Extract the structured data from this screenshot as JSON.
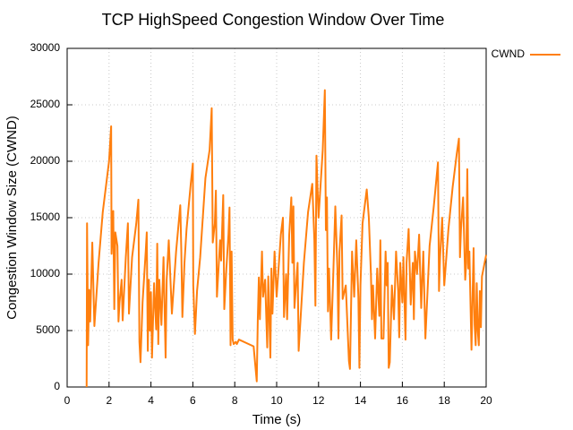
{
  "chart_data": {
    "type": "line",
    "title": "TCP HighSpeed Congestion Window Over Time",
    "x_label": "Time (s)",
    "y_label": "Congestion Window Size (CWND)",
    "xlim": [
      0,
      20
    ],
    "xticks": [
      0,
      2,
      4,
      6,
      8,
      10,
      12,
      14,
      16,
      18,
      20
    ],
    "ylim": [
      0,
      30000
    ],
    "yticks": [
      0,
      5000,
      10000,
      15000,
      20000,
      25000,
      30000
    ],
    "grid": true,
    "legend": "outside-top-right",
    "x": [
      0.93,
      0.95,
      1.0,
      1.05,
      1.1,
      1.2,
      1.3,
      1.5,
      1.7,
      2.0,
      2.1,
      2.12,
      2.2,
      2.25,
      2.3,
      2.4,
      2.45,
      2.5,
      2.6,
      2.65,
      2.8,
      2.9,
      2.95,
      3.1,
      3.3,
      3.4,
      3.45,
      3.5,
      3.6,
      3.75,
      3.8,
      3.85,
      3.9,
      3.95,
      4.0,
      4.05,
      4.15,
      4.25,
      4.3,
      4.35,
      4.4,
      4.5,
      4.6,
      4.7,
      4.75,
      4.85,
      5.0,
      5.2,
      5.4,
      5.45,
      5.5,
      5.6,
      5.7,
      5.9,
      6.0,
      6.02,
      6.1,
      6.2,
      6.35,
      6.6,
      6.8,
      6.9,
      6.95,
      7.05,
      7.1,
      7.15,
      7.3,
      7.35,
      7.45,
      7.5,
      7.6,
      7.7,
      7.75,
      7.8,
      7.85,
      7.9,
      7.95,
      8.05,
      8.1,
      8.2,
      8.9,
      9.05,
      9.1,
      9.15,
      9.2,
      9.3,
      9.35,
      9.45,
      9.55,
      9.6,
      9.7,
      9.75,
      9.8,
      9.9,
      10.0,
      10.2,
      10.3,
      10.35,
      10.45,
      10.5,
      10.6,
      10.7,
      10.75,
      10.8,
      10.85,
      11.0,
      11.05,
      11.3,
      11.5,
      11.7,
      11.8,
      11.85,
      11.9,
      12.0,
      12.2,
      12.3,
      12.35,
      12.4,
      12.45,
      12.5,
      12.6,
      12.7,
      12.8,
      12.9,
      12.95,
      13.0,
      13.1,
      13.15,
      13.3,
      13.45,
      13.5,
      13.6,
      13.7,
      13.8,
      13.9,
      13.95,
      14.0,
      14.1,
      14.3,
      14.4,
      14.5,
      14.55,
      14.6,
      14.7,
      14.8,
      14.9,
      14.95,
      15.0,
      15.1,
      15.2,
      15.25,
      15.3,
      15.35,
      15.4,
      15.5,
      15.6,
      15.7,
      15.8,
      15.85,
      15.9,
      16.0,
      16.05,
      16.15,
      16.2,
      16.3,
      16.4,
      16.5,
      16.55,
      16.6,
      16.7,
      16.8,
      16.9,
      17.0,
      17.1,
      17.3,
      17.5,
      17.7,
      17.75,
      17.8,
      17.9,
      18.0,
      18.2,
      18.4,
      18.6,
      18.7,
      18.75,
      18.8,
      18.9,
      19.0,
      19.05,
      19.1,
      19.15,
      19.2,
      19.3,
      19.4,
      19.45,
      19.5,
      19.55,
      19.6,
      19.65,
      19.7,
      19.75,
      19.8,
      20.0
    ],
    "series": [
      {
        "name": "CWND",
        "color": "#ff7f0e",
        "values": [
          0,
          14500,
          3700,
          8600,
          5800,
          12800,
          5400,
          11000,
          15500,
          20000,
          23100,
          11800,
          15600,
          6900,
          13700,
          12500,
          5800,
          7500,
          9500,
          5900,
          11500,
          14500,
          6500,
          11500,
          14500,
          16600,
          4000,
          2200,
          7500,
          12000,
          13700,
          3200,
          9500,
          5000,
          8400,
          2600,
          9200,
          5100,
          12700,
          3800,
          9500,
          5500,
          11500,
          2600,
          9500,
          13000,
          6500,
          12000,
          16100,
          12000,
          6200,
          11000,
          14000,
          18000,
          19800,
          9000,
          4700,
          8500,
          11500,
          18500,
          21000,
          24700,
          12800,
          14500,
          17400,
          8000,
          13000,
          11200,
          17000,
          6900,
          10500,
          13500,
          15900,
          3700,
          12000,
          4200,
          3800,
          4000,
          3800,
          4200,
          3600,
          500,
          6000,
          9700,
          6000,
          12000,
          8000,
          9500,
          3500,
          9800,
          2600,
          10500,
          6500,
          12000,
          8000,
          13500,
          15000,
          6200,
          10000,
          6000,
          13500,
          16800,
          11000,
          16000,
          7000,
          11000,
          3200,
          11000,
          15500,
          18000,
          13000,
          7200,
          20500,
          15000,
          21000,
          26300,
          13900,
          16800,
          6700,
          10500,
          4200,
          9800,
          16000,
          10500,
          4300,
          12000,
          15200,
          7800,
          9000,
          2300,
          1600,
          12000,
          8000,
          13000,
          8000,
          1700,
          9000,
          14500,
          17500,
          15000,
          10000,
          6000,
          9000,
          4300,
          10500,
          6300,
          13000,
          4300,
          4300,
          12000,
          9000,
          11000,
          1700,
          2200,
          9000,
          6000,
          12000,
          8500,
          4400,
          11000,
          7500,
          11500,
          4200,
          11000,
          14000,
          7300,
          11000,
          6000,
          12000,
          10000,
          13500,
          7000,
          12000,
          4300,
          12500,
          16000,
          19900,
          8500,
          11500,
          15000,
          9000,
          14000,
          17700,
          20700,
          22000,
          11500,
          14000,
          16800,
          9500,
          11000,
          19300,
          10500,
          12000,
          3300,
          12300,
          5500,
          3700,
          9200,
          5000,
          3700,
          8500,
          5300,
          9800,
          11700
        ]
      }
    ]
  }
}
